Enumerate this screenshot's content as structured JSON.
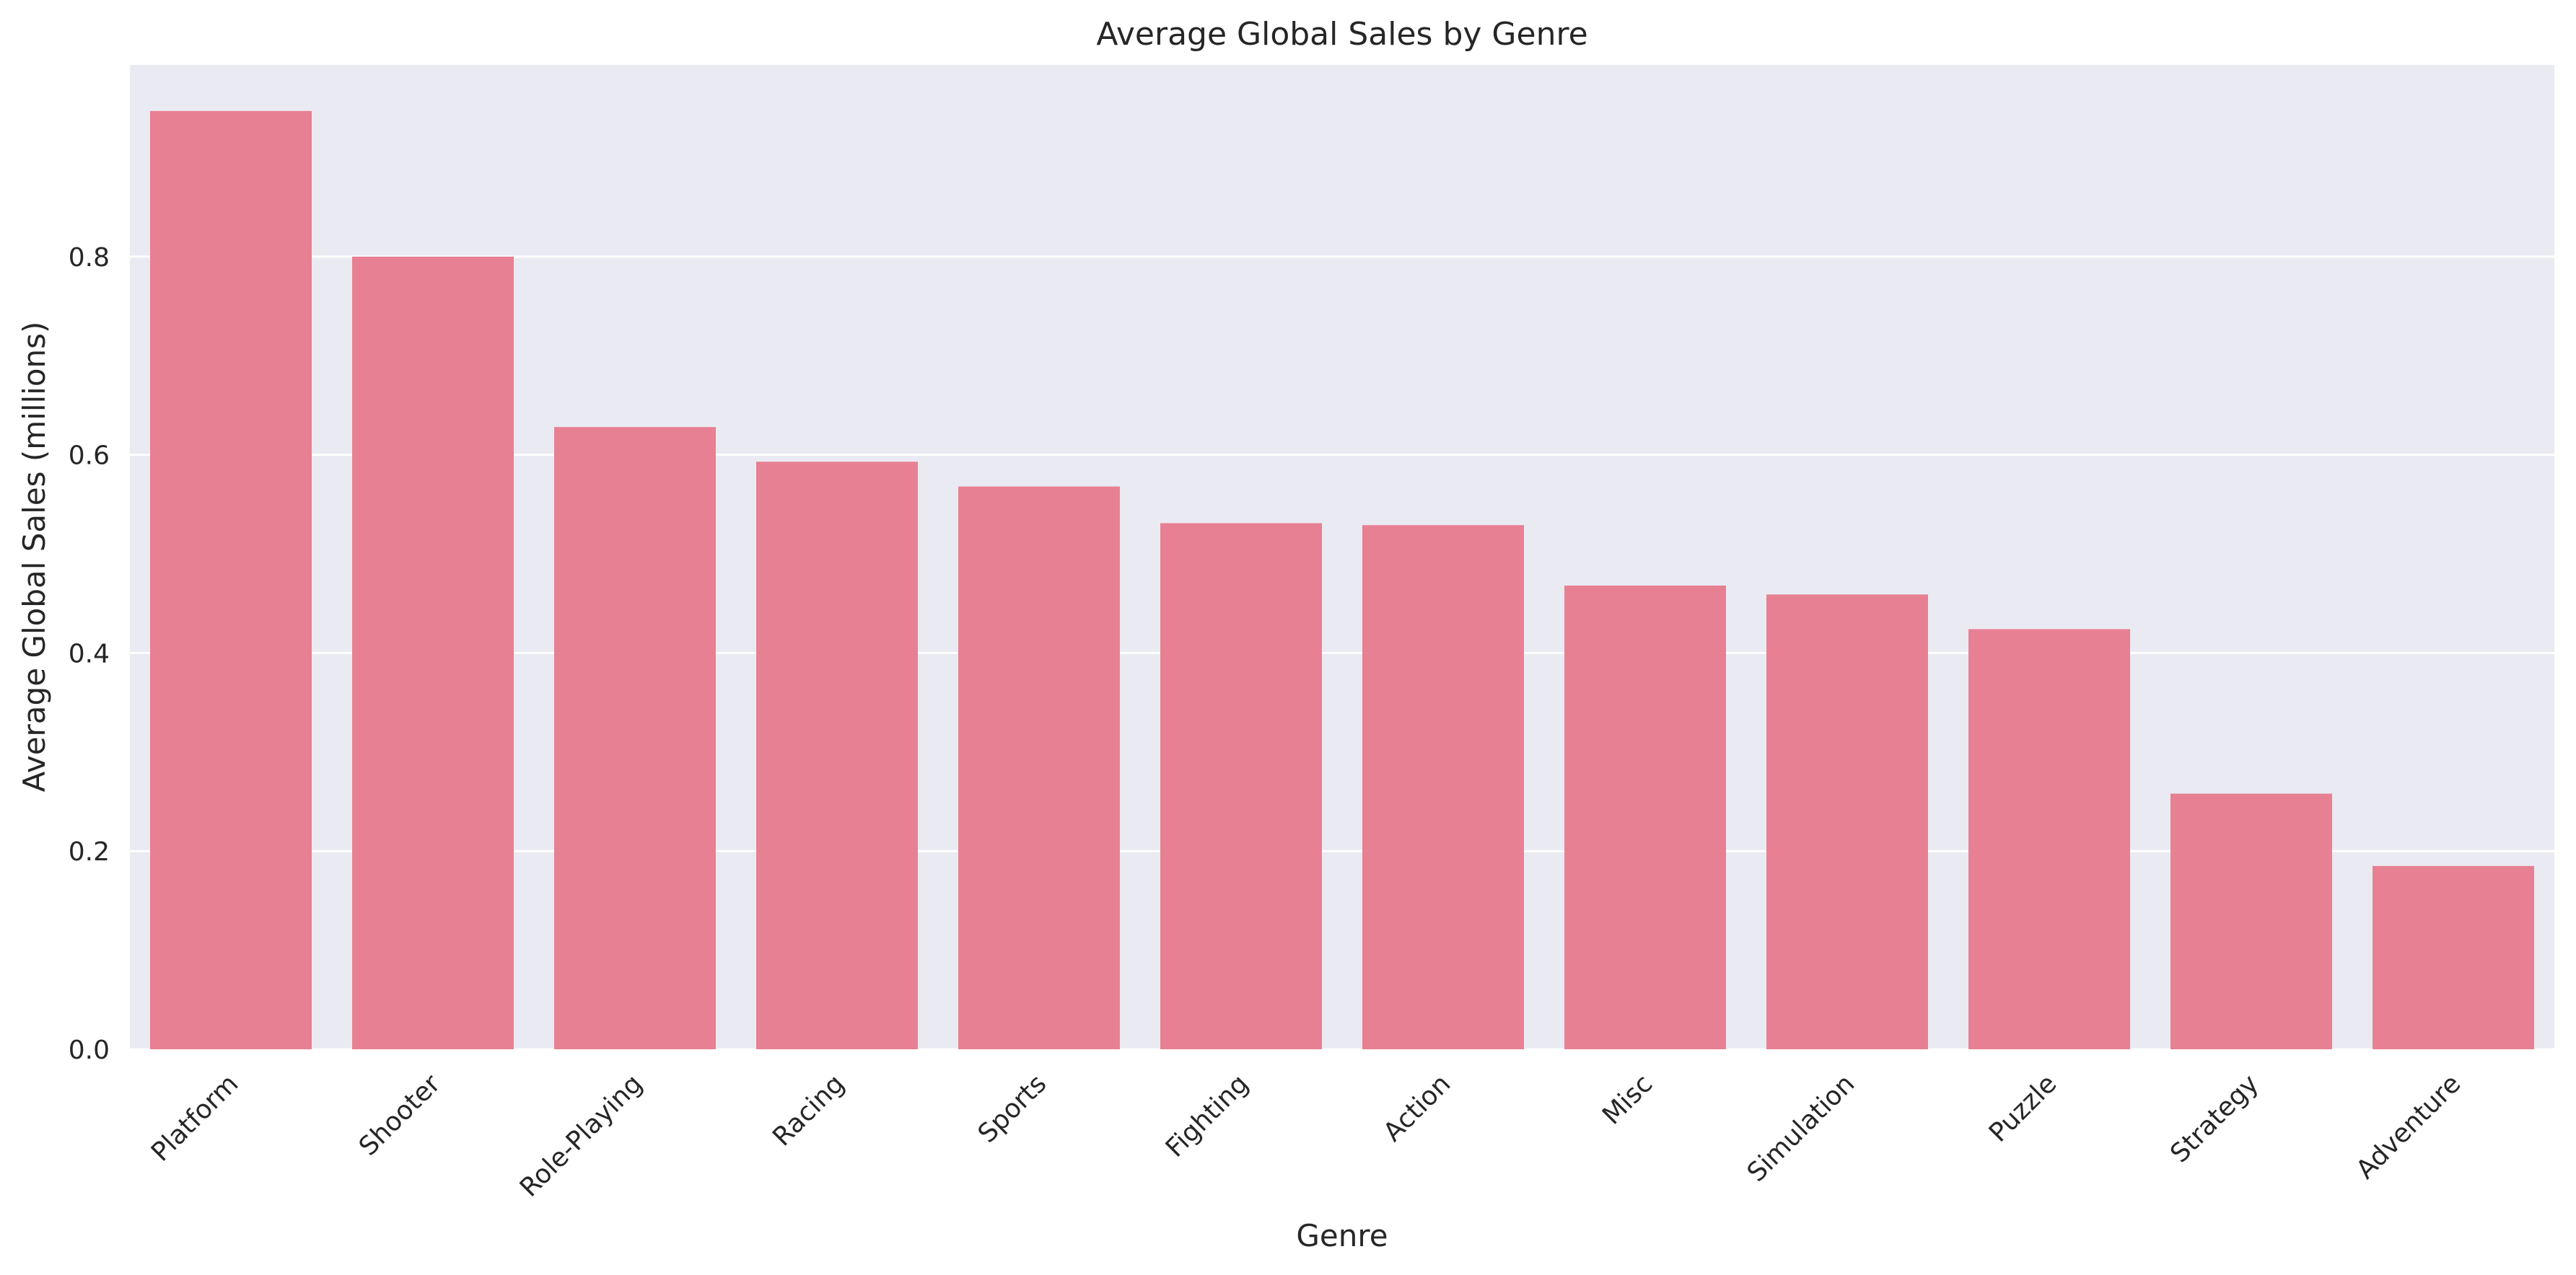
{
  "chart_data": {
    "type": "bar",
    "title": "Average Global Sales by Genre",
    "xlabel": "Genre",
    "ylabel": "Average Global Sales (millions)",
    "categories": [
      "Platform",
      "Shooter",
      "Role-Playing",
      "Racing",
      "Sports",
      "Fighting",
      "Action",
      "Misc",
      "Simulation",
      "Puzzle",
      "Strategy",
      "Adventure"
    ],
    "values": [
      0.947,
      0.8,
      0.628,
      0.593,
      0.568,
      0.531,
      0.529,
      0.468,
      0.459,
      0.424,
      0.258,
      0.185
    ],
    "ylim": [
      0,
      0.9935
    ],
    "yticks": [
      0.0,
      0.2,
      0.4,
      0.6,
      0.8
    ],
    "ytick_labels": [
      "0.0",
      "0.2",
      "0.4",
      "0.6",
      "0.8"
    ],
    "grid": true,
    "legend": "none",
    "colors": {
      "bar": "#e88093",
      "plot_background": "#eaeaf2",
      "grid": "#ffffff",
      "text": "#262626"
    }
  }
}
